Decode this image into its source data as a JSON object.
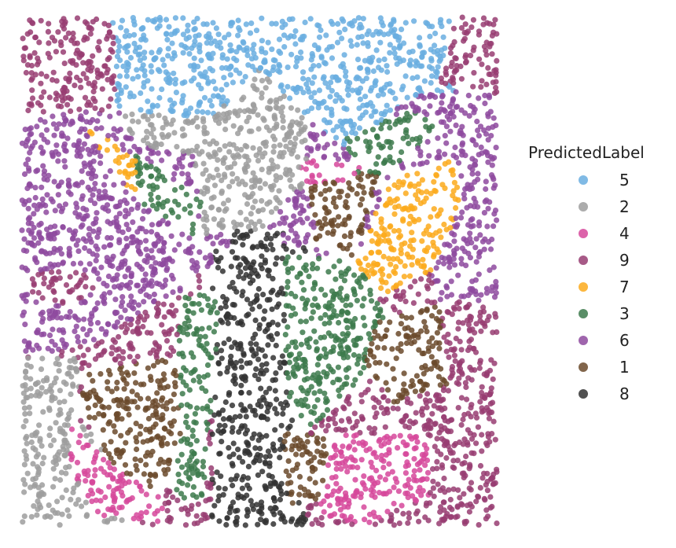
{
  "chart_data": {
    "type": "scatter",
    "title": "",
    "xlabel": "",
    "ylabel": "",
    "grid": false,
    "axes_visible": false,
    "legend": {
      "title": "PredictedLabel",
      "placement": "right",
      "entries": [
        {
          "label": "5",
          "color": "#6aaee0"
        },
        {
          "label": "2",
          "color": "#9e9e9e"
        },
        {
          "label": "4",
          "color": "#d6489b"
        },
        {
          "label": "9",
          "color": "#983d72"
        },
        {
          "label": "7",
          "color": "#fbaa1c"
        },
        {
          "label": "3",
          "color": "#3d7a4c"
        },
        {
          "label": "6",
          "color": "#8e4a9f"
        },
        {
          "label": "1",
          "color": "#6b4a2c"
        },
        {
          "label": "8",
          "color": "#333333"
        }
      ]
    },
    "xlim": [
      0,
      1
    ],
    "ylim": [
      0,
      1
    ],
    "regions": [
      {
        "label": "5",
        "polygon": [
          [
            0.19,
            1.0
          ],
          [
            0.91,
            1.0
          ],
          [
            0.88,
            0.87
          ],
          [
            0.77,
            0.81
          ],
          [
            0.71,
            0.72
          ],
          [
            0.6,
            0.8
          ],
          [
            0.5,
            0.9
          ],
          [
            0.4,
            0.8
          ],
          [
            0.24,
            0.75
          ],
          [
            0.2,
            0.82
          ]
        ]
      },
      {
        "label": "2",
        "polygon": [
          [
            0.2,
            0.82
          ],
          [
            0.24,
            0.75
          ],
          [
            0.36,
            0.73
          ],
          [
            0.38,
            0.57
          ],
          [
            0.5,
            0.58
          ],
          [
            0.6,
            0.67
          ],
          [
            0.6,
            0.8
          ],
          [
            0.5,
            0.9
          ],
          [
            0.4,
            0.8
          ]
        ]
      },
      {
        "label": "2",
        "polygon": [
          [
            0.0,
            0.33
          ],
          [
            0.12,
            0.36
          ],
          [
            0.12,
            0.2
          ],
          [
            0.25,
            0.1
          ],
          [
            0.22,
            0.0
          ],
          [
            0.0,
            0.0
          ]
        ]
      },
      {
        "label": "7",
        "polygon": [
          [
            0.0,
            0.8
          ],
          [
            0.12,
            0.8
          ],
          [
            0.3,
            0.68
          ],
          [
            0.34,
            0.52
          ],
          [
            0.24,
            0.46
          ],
          [
            0.16,
            0.47
          ],
          [
            0.14,
            0.62
          ],
          [
            0.0,
            0.68
          ]
        ]
      },
      {
        "label": "7",
        "polygon": [
          [
            0.7,
            0.42
          ],
          [
            0.86,
            0.5
          ],
          [
            0.93,
            0.64
          ],
          [
            0.91,
            0.72
          ],
          [
            0.78,
            0.69
          ],
          [
            0.7,
            0.52
          ]
        ]
      },
      {
        "label": "8",
        "polygon": [
          [
            0.45,
            0.58
          ],
          [
            0.55,
            0.58
          ],
          [
            0.55,
            0.25
          ],
          [
            0.52,
            0.05
          ],
          [
            0.48,
            0.05
          ],
          [
            0.4,
            0.25
          ],
          [
            0.41,
            0.45
          ]
        ]
      },
      {
        "label": "3",
        "polygon": [
          [
            0.42,
            0.46
          ],
          [
            0.4,
            0.25
          ],
          [
            0.38,
            0.05
          ],
          [
            0.32,
            0.05
          ],
          [
            0.3,
            0.22
          ],
          [
            0.34,
            0.45
          ]
        ]
      },
      {
        "label": "3",
        "polygon": [
          [
            0.55,
            0.53
          ],
          [
            0.7,
            0.52
          ],
          [
            0.77,
            0.42
          ],
          [
            0.74,
            0.3
          ],
          [
            0.6,
            0.18
          ],
          [
            0.56,
            0.22
          ]
        ]
      },
      {
        "label": "3",
        "polygon": [
          [
            0.24,
            0.73
          ],
          [
            0.38,
            0.64
          ],
          [
            0.36,
            0.57
          ],
          [
            0.3,
            0.58
          ],
          [
            0.24,
            0.64
          ]
        ]
      },
      {
        "label": "3",
        "polygon": [
          [
            0.68,
            0.76
          ],
          [
            0.82,
            0.82
          ],
          [
            0.88,
            0.78
          ],
          [
            0.78,
            0.7
          ],
          [
            0.7,
            0.68
          ]
        ]
      },
      {
        "label": "1",
        "polygon": [
          [
            0.12,
            0.3
          ],
          [
            0.32,
            0.33
          ],
          [
            0.34,
            0.2
          ],
          [
            0.3,
            0.06
          ],
          [
            0.2,
            0.1
          ],
          [
            0.14,
            0.2
          ]
        ]
      },
      {
        "label": "1",
        "polygon": [
          [
            0.6,
            0.7
          ],
          [
            0.75,
            0.69
          ],
          [
            0.7,
            0.52
          ],
          [
            0.62,
            0.55
          ]
        ]
      },
      {
        "label": "1",
        "polygon": [
          [
            0.75,
            0.4
          ],
          [
            0.9,
            0.44
          ],
          [
            0.9,
            0.28
          ],
          [
            0.78,
            0.24
          ],
          [
            0.72,
            0.33
          ]
        ]
      },
      {
        "label": "1",
        "polygon": [
          [
            0.55,
            0.18
          ],
          [
            0.66,
            0.18
          ],
          [
            0.67,
            0.06
          ],
          [
            0.56,
            0.04
          ]
        ]
      },
      {
        "label": "4",
        "polygon": [
          [
            0.1,
            0.2
          ],
          [
            0.22,
            0.1
          ],
          [
            0.3,
            0.06
          ],
          [
            0.3,
            0.0
          ],
          [
            0.15,
            0.02
          ],
          [
            0.1,
            0.12
          ]
        ]
      },
      {
        "label": "4",
        "polygon": [
          [
            0.66,
            0.18
          ],
          [
            0.85,
            0.18
          ],
          [
            0.86,
            0.06
          ],
          [
            0.72,
            0.0
          ],
          [
            0.62,
            0.02
          ]
        ]
      },
      {
        "label": "4",
        "polygon": [
          [
            0.58,
            0.72
          ],
          [
            0.72,
            0.72
          ],
          [
            0.7,
            0.68
          ],
          [
            0.6,
            0.67
          ]
        ]
      },
      {
        "label": "9",
        "polygon": [
          [
            0.0,
            1.0
          ],
          [
            0.19,
            1.0
          ],
          [
            0.2,
            0.82
          ],
          [
            0.0,
            0.8
          ]
        ]
      },
      {
        "label": "9",
        "polygon": [
          [
            0.91,
            1.0
          ],
          [
            1.0,
            1.0
          ],
          [
            1.0,
            0.85
          ],
          [
            0.88,
            0.87
          ]
        ]
      },
      {
        "label": "9",
        "polygon": [
          [
            0.0,
            0.46
          ],
          [
            0.1,
            0.43
          ],
          [
            0.16,
            0.36
          ],
          [
            0.12,
            0.33
          ],
          [
            0.0,
            0.33
          ]
        ]
      },
      {
        "label": "9",
        "polygon": [
          [
            0.88,
            0.44
          ],
          [
            1.0,
            0.44
          ],
          [
            1.0,
            0.0
          ],
          [
            0.86,
            0.0
          ],
          [
            0.86,
            0.18
          ],
          [
            0.9,
            0.28
          ]
        ]
      },
      {
        "label": "6",
        "polygon": [
          [
            0.0,
            0.68
          ],
          [
            0.14,
            0.62
          ],
          [
            0.16,
            0.47
          ],
          [
            0.3,
            0.45
          ],
          [
            0.34,
            0.45
          ],
          [
            0.36,
            0.57
          ],
          [
            0.24,
            0.64
          ],
          [
            0.12,
            0.8
          ],
          [
            0.0,
            0.8
          ]
        ]
      },
      {
        "label": "6",
        "polygon": [
          [
            0.0,
            0.33
          ],
          [
            0.16,
            0.36
          ],
          [
            0.3,
            0.45
          ],
          [
            0.16,
            0.47
          ],
          [
            0.1,
            0.43
          ],
          [
            0.0,
            0.46
          ]
        ]
      },
      {
        "label": "6",
        "polygon": [
          [
            0.88,
            0.78
          ],
          [
            1.0,
            0.85
          ],
          [
            1.0,
            0.44
          ],
          [
            0.88,
            0.44
          ],
          [
            0.86,
            0.5
          ],
          [
            0.93,
            0.64
          ],
          [
            0.91,
            0.72
          ]
        ]
      },
      {
        "label": "6",
        "polygon": [
          [
            0.56,
            0.58
          ],
          [
            0.62,
            0.55
          ],
          [
            0.6,
            0.67
          ],
          [
            0.55,
            0.64
          ]
        ]
      }
    ]
  }
}
